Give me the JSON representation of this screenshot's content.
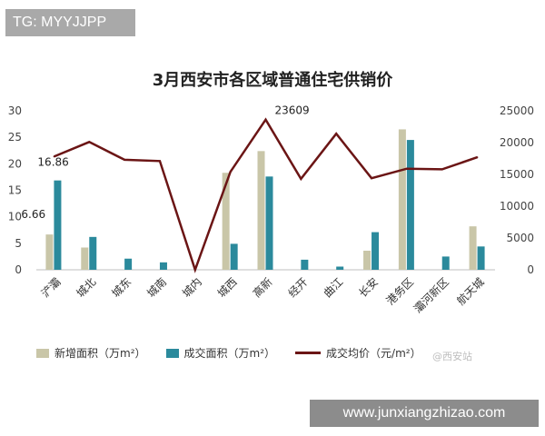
{
  "overlay": {
    "tag": "TG: MYYJJPP",
    "url": "www.junxiangzhizao.com",
    "watermark": "@西安站"
  },
  "chart_data": {
    "type": "bar",
    "title": "3月西安市各区域普通住宅供销价",
    "categories": [
      "浐灞",
      "城北",
      "城东",
      "城南",
      "城内",
      "城西",
      "高新",
      "经开",
      "曲江",
      "长安",
      "港务区",
      "灞河新区",
      "航天城"
    ],
    "series": [
      {
        "name": "新增面积（万m²）",
        "type": "bar",
        "axis": "left",
        "color": "#c9c6a8",
        "values": [
          6.66,
          4.2,
          0,
          0,
          0,
          18.3,
          22.4,
          0,
          0,
          3.6,
          26.5,
          0,
          8.2
        ]
      },
      {
        "name": "成交面积（万m²）",
        "type": "bar",
        "axis": "left",
        "color": "#2b8a9c",
        "values": [
          16.86,
          6.2,
          2.1,
          1.4,
          0,
          4.9,
          17.6,
          1.9,
          0.6,
          7.1,
          24.5,
          2.5,
          4.4
        ]
      },
      {
        "name": "成交均价（元/m²）",
        "type": "line",
        "axis": "right",
        "color": "#6b1515",
        "values": [
          17800,
          20100,
          17300,
          17100,
          0,
          15400,
          23609,
          14300,
          21400,
          14400,
          15900,
          15800,
          17700
        ]
      }
    ],
    "left_axis": {
      "ylim": [
        0,
        30
      ],
      "ticks": [
        0,
        5,
        10,
        15,
        20,
        25,
        30
      ]
    },
    "right_axis": {
      "ylim": [
        0,
        25000
      ],
      "ticks": [
        0,
        5000,
        10000,
        15000,
        20000,
        25000
      ]
    },
    "annotations": [
      {
        "text": "6.66",
        "category": "浐灞",
        "series": 0
      },
      {
        "text": "16.86",
        "category": "浐灞",
        "series": 1
      },
      {
        "text": "23609",
        "category": "高新",
        "series": 2
      }
    ],
    "grid": false,
    "legend_position": "bottom"
  }
}
